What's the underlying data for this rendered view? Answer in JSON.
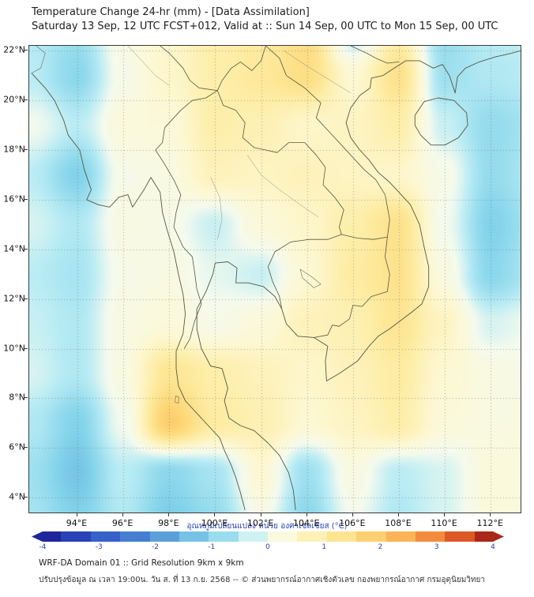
{
  "header": {
    "title": "Temperature Change 24-hr (mm) - [Data Assimilation]",
    "subtitle": "Saturday 13 Sep, 12 UTC FCST+012, Valid at :: Sun 14 Sep, 00 UTC to Mon 15 Sep, 00 UTC"
  },
  "chart_data": {
    "type": "heatmap",
    "title": "Temperature Change 24-hr (mm) - [Data Assimilation]",
    "units": "°C",
    "lon_range": [
      91.9,
      113.3
    ],
    "lat_range": [
      3.4,
      22.2
    ],
    "grid_on": true,
    "axes": {
      "lat_tick_labels": [
        "22°N",
        "20°N",
        "18°N",
        "16°N",
        "14°N",
        "12°N",
        "10°N",
        "8°N",
        "6°N",
        "4°N"
      ],
      "lon_tick_labels": [
        "94°E",
        "96°E",
        "98°E",
        "100°E",
        "102°E",
        "104°E",
        "106°E",
        "108°E",
        "110°E",
        "112°E"
      ]
    },
    "grid_lons": [
      92,
      94,
      96,
      98,
      100,
      102,
      104,
      106,
      108,
      110,
      112,
      114
    ],
    "grid_lats": [
      23,
      21,
      19,
      17,
      15,
      13,
      11,
      9,
      7,
      5,
      3
    ],
    "values": [
      [
        -0.5,
        -0.7,
        0.2,
        0.5,
        0.9,
        1.0,
        1.5,
        -0.6,
        0.8,
        -0.8,
        -0.4,
        -0.3
      ],
      [
        -0.4,
        -0.9,
        0.1,
        0.5,
        0.9,
        1.1,
        1.4,
        0.4,
        1.3,
        -0.7,
        -0.5,
        -0.4
      ],
      [
        0.0,
        -0.4,
        0.3,
        0.3,
        0.9,
        0.8,
        0.5,
        0.6,
        0.9,
        -0.3,
        -0.8,
        -0.6
      ],
      [
        -0.4,
        -1.0,
        0.1,
        0.2,
        0.7,
        0.6,
        0.7,
        0.6,
        0.5,
        0.1,
        -0.8,
        -0.5
      ],
      [
        -0.2,
        -0.5,
        0.2,
        0.1,
        -0.3,
        0.3,
        0.5,
        0.9,
        1.3,
        0.0,
        -1.0,
        -0.6
      ],
      [
        -0.4,
        -0.6,
        0.1,
        0.2,
        -0.1,
        -0.3,
        0.4,
        1.0,
        1.3,
        0.2,
        -0.9,
        -0.5
      ],
      [
        -0.3,
        -0.5,
        0.2,
        0.3,
        0.1,
        0.3,
        0.7,
        0.8,
        1.2,
        0.6,
        -0.2,
        0.0
      ],
      [
        -0.2,
        -0.5,
        0.2,
        1.2,
        0.9,
        0.7,
        0.5,
        0.7,
        1.0,
        0.4,
        0.2,
        0.1
      ],
      [
        -0.5,
        -1.0,
        0.0,
        1.8,
        1.0,
        0.8,
        0.4,
        0.6,
        0.9,
        0.3,
        0.2,
        0.2
      ],
      [
        -0.7,
        -1.2,
        -0.4,
        -0.9,
        -0.6,
        0.4,
        -0.7,
        0.2,
        -0.4,
        -0.2,
        0.3,
        0.2
      ],
      [
        -0.6,
        -1.0,
        -0.5,
        -1.1,
        -0.8,
        0.1,
        -0.9,
        0.0,
        -0.5,
        -0.2,
        0.3,
        0.2
      ]
    ],
    "colorbar": {
      "label": "อุณหภูมิเปลี่ยนแปลง หน่วย องศาเซลเซียส (°C)",
      "min": -4,
      "max": 4,
      "ticks": [
        "-4",
        "-3",
        "-2",
        "-1",
        "0",
        "1",
        "2",
        "3",
        "4"
      ],
      "stops": [
        {
          "v": -4,
          "c": "#18188f"
        },
        {
          "v": -3,
          "c": "#2f50c4"
        },
        {
          "v": -2,
          "c": "#4e8fd6"
        },
        {
          "v": -1,
          "c": "#82d3ea"
        },
        {
          "v": -0.4,
          "c": "#baecf4"
        },
        {
          "v": 0,
          "c": "#f4faee"
        },
        {
          "v": 0.4,
          "c": "#fdf8d4"
        },
        {
          "v": 1,
          "c": "#fdeca2"
        },
        {
          "v": 1.6,
          "c": "#fdd878"
        },
        {
          "v": 2.2,
          "c": "#fdb85a"
        },
        {
          "v": 2.8,
          "c": "#f2873a"
        },
        {
          "v": 3.4,
          "c": "#d44a20"
        },
        {
          "v": 4,
          "c": "#8c0f10"
        }
      ]
    }
  },
  "footer": {
    "line1": "WRF-DA Domain 01 :: Grid Resolution 9km x 9km",
    "line2": "ปรับปรุงข้อมูล ณ เวลา 19:00น. วัน ส. ที่ 13 ก.ย. 2568 -- © ส่วนพยากรณ์อากาศเชิงตัวเลข กองพยากรณ์อากาศ กรมอุตุนิยมวิทยา"
  }
}
